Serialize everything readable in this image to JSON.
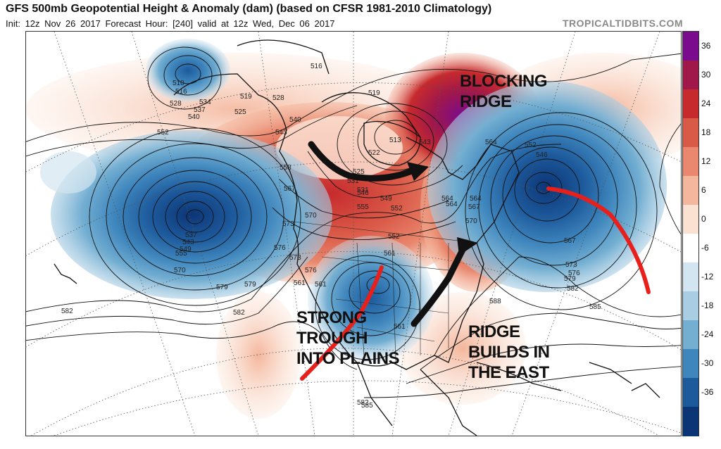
{
  "header": {
    "title": "GFS 500mb Geopotential Height & Anomaly (dam) (based on CFSR 1981-2010 Climatology)",
    "init": "Init: 12z Nov 26 2017",
    "forecast_hour": "Forecast Hour: [240]",
    "valid": "valid at 12z Wed, Dec 06 2017",
    "brand": "TROPICALTIDBITS.COM"
  },
  "colorbar": {
    "ticks": [
      "36",
      "30",
      "24",
      "18",
      "12",
      "6",
      "0",
      "-6",
      "-12",
      "-18",
      "-24",
      "-30",
      "-36"
    ],
    "colors": [
      "#7a0b8c",
      "#a0184a",
      "#c62a2d",
      "#da5a48",
      "#e9886e",
      "#f4b69c",
      "#fbe1d2",
      "#ffffff",
      "#d3e5f0",
      "#a9cde3",
      "#74afd2",
      "#3f86bd",
      "#1d5a9c",
      "#0c3575"
    ]
  },
  "annotations": {
    "blocking_ridge": [
      "BLOCKING",
      "RIDGE"
    ],
    "strong_trough": [
      "STRONG",
      "TROUGH",
      "INTO PLAINS"
    ],
    "ridge_builds": [
      "RIDGE",
      "BUILDS IN",
      "THE EAST"
    ]
  },
  "contour_labels": [
    "510",
    "516",
    "528",
    "534",
    "537",
    "540",
    "552",
    "519",
    "525",
    "528",
    "531",
    "516",
    "519",
    "513",
    "522",
    "525",
    "531",
    "540",
    "543",
    "546",
    "549",
    "552",
    "555",
    "558",
    "564",
    "567",
    "570",
    "573",
    "576",
    "570",
    "579",
    "582",
    "582",
    "537",
    "543",
    "549",
    "555",
    "561",
    "561",
    "561",
    "567",
    "564",
    "573",
    "576",
    "579",
    "582",
    "585",
    "588",
    "552",
    "546",
    "564",
    "567",
    "543",
    "552",
    "561",
    "564",
    "570",
    "573",
    "576",
    "579",
    "582",
    "585"
  ]
}
